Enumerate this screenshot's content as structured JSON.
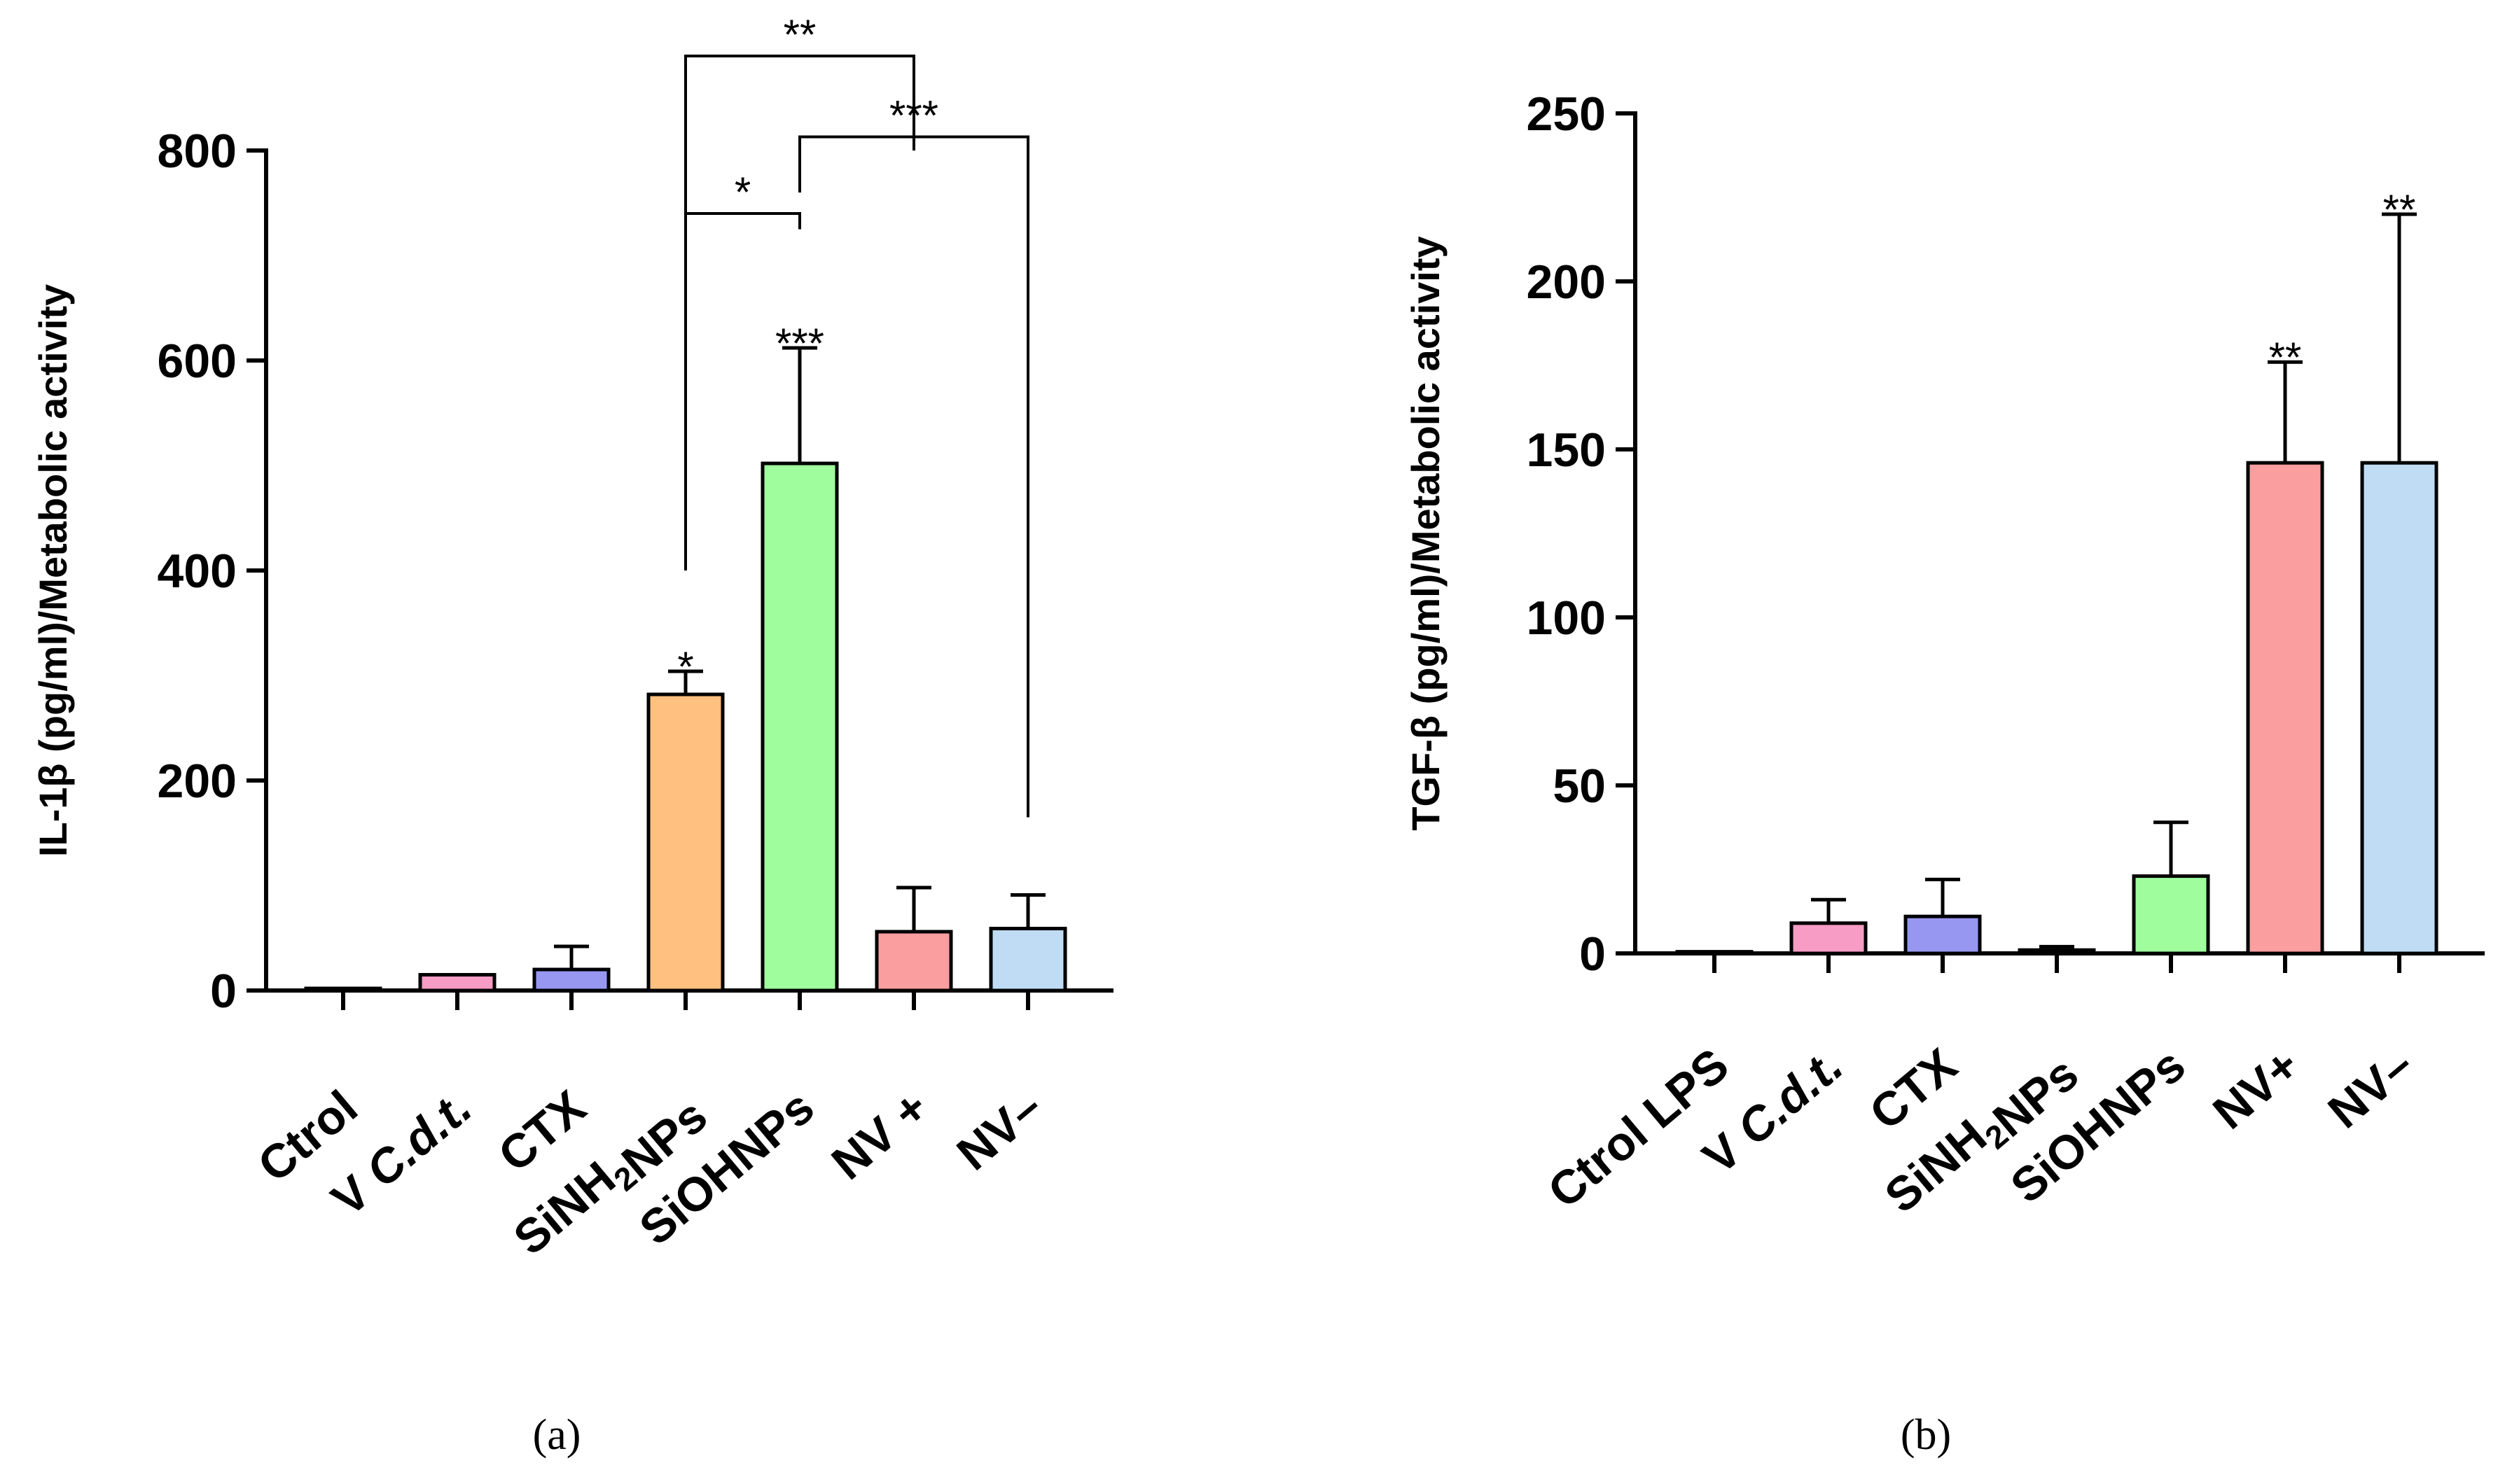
{
  "chart_data": [
    {
      "type": "bar",
      "panel_label": "(a)",
      "ylabel": "IL-1β (pg/ml)/Metabolic activity",
      "xlabel": "",
      "ylim": [
        0,
        800
      ],
      "yticks": [
        0,
        200,
        400,
        600,
        800
      ],
      "categories": [
        "Ctrol",
        "V C.d.t.",
        "CTX",
        "SiNH2NPs",
        "SiOHNPs",
        "NV +",
        "NV–"
      ],
      "category_labels": [
        {
          "parts": [
            {
              "t": "Ctrol"
            }
          ]
        },
        {
          "parts": [
            {
              "t": "V "
            },
            {
              "t": "C.d.t.",
              "i": true
            }
          ]
        },
        {
          "parts": [
            {
              "t": "CTX"
            }
          ]
        },
        {
          "parts": [
            {
              "t": "SiNH"
            },
            {
              "t": "2",
              "sub": true
            },
            {
              "t": "NPs"
            }
          ]
        },
        {
          "parts": [
            {
              "t": "SiOHNPs"
            }
          ]
        },
        {
          "parts": [
            {
              "t": "NV +"
            }
          ]
        },
        {
          "parts": [
            {
              "t": "NV–"
            }
          ]
        }
      ],
      "values": [
        2,
        15,
        20,
        282,
        502,
        56,
        59
      ],
      "errors": [
        0,
        0,
        22,
        22,
        110,
        42,
        32
      ],
      "colors": [
        "#ffffff",
        "#f79cc4",
        "#9797f2",
        "#ffc080",
        "#a0fd9e",
        "#fb9e9f",
        "#c0dcf5"
      ],
      "significance": [
        "",
        "",
        "",
        "*",
        "***",
        "",
        ""
      ],
      "brackets": [
        {
          "from": 3,
          "to": 5,
          "label": "**",
          "y": 890,
          "left_end": 400,
          "right_end": 800
        },
        {
          "from": 3,
          "to": 4,
          "label": "*",
          "y": 740,
          "left_end": 400,
          "right_end": 725
        },
        {
          "from": 4,
          "to": 6,
          "label": "***",
          "y": 813,
          "left_end": 760,
          "right_end": 165
        }
      ]
    },
    {
      "type": "bar",
      "panel_label": "(b)",
      "ylabel": "TGF-β (pg/ml)/Metabolic activity",
      "xlabel": "",
      "ylim": [
        0,
        250
      ],
      "yticks": [
        0,
        50,
        100,
        150,
        200,
        250
      ],
      "categories": [
        "Ctrol LPS",
        "V C.d.t.",
        "CTX",
        "SiNH2NPs",
        "SiOHNPs",
        "NV+",
        "NV–"
      ],
      "category_labels": [
        {
          "parts": [
            {
              "t": "Ctrol LPS"
            }
          ]
        },
        {
          "parts": [
            {
              "t": "V "
            },
            {
              "t": "C.d.t.",
              "i": true
            }
          ]
        },
        {
          "parts": [
            {
              "t": "CTX"
            }
          ]
        },
        {
          "parts": [
            {
              "t": "SiNH"
            },
            {
              "t": "2",
              "sub": true
            },
            {
              "t": "NPs"
            }
          ]
        },
        {
          "parts": [
            {
              "t": "SiOHNPs"
            }
          ]
        },
        {
          "parts": [
            {
              "t": "NV+"
            }
          ]
        },
        {
          "parts": [
            {
              "t": "NV–"
            }
          ]
        }
      ],
      "values": [
        0.5,
        9,
        11,
        1,
        23,
        146,
        146
      ],
      "errors": [
        0,
        7,
        11,
        1,
        16,
        30,
        74
      ],
      "colors": [
        "#ffffff",
        "#f79cc4",
        "#9797f2",
        "#ffffff",
        "#a0fd9e",
        "#fb9e9f",
        "#c0dcf5"
      ],
      "significance": [
        "",
        "",
        "",
        "",
        "",
        "**",
        "**"
      ],
      "brackets": []
    }
  ]
}
